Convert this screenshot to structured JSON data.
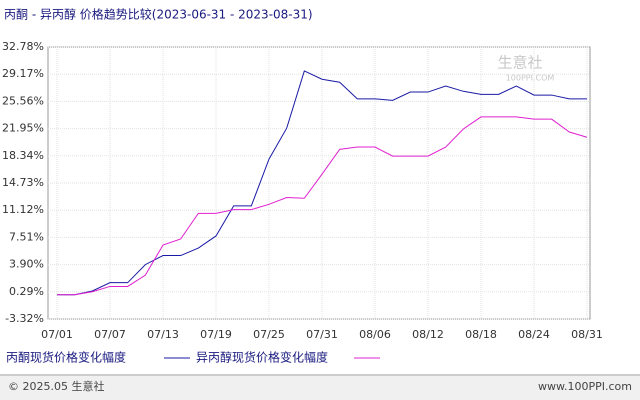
{
  "chart_data": {
    "type": "line",
    "title": "丙酮 - 异丙醇 价格趋势比较(2023-06-31 - 2023-08-31)",
    "categories": [
      "07/01",
      null,
      null,
      "07/07",
      null,
      null,
      "07/13",
      null,
      null,
      "07/19",
      null,
      null,
      "07/25",
      null,
      null,
      "07/31",
      null,
      null,
      "08/06",
      null,
      null,
      "08/12",
      null,
      null,
      "08/18",
      null,
      null,
      "08/24",
      null,
      null,
      "08/31"
    ],
    "series": [
      {
        "name": "丙酮现货价格变化幅度",
        "color": "#1a1aa6",
        "values": [
          -0.1,
          -0.1,
          0.4,
          1.5,
          1.5,
          3.9,
          5.1,
          5.1,
          6.1,
          7.7,
          11.7,
          11.7,
          17.9,
          22,
          29.6,
          28.5,
          28.1,
          25.9,
          25.9,
          25.7,
          26.8,
          26.8,
          27.6,
          26.9,
          26.5,
          26.5,
          27.6,
          26.4,
          26.4,
          25.9,
          25.9
        ]
      },
      {
        "name": "异丙醇现货价格变化幅度",
        "color": "#e020d0",
        "values": [
          -0.1,
          -0.1,
          0.3,
          1.0,
          1.0,
          2.5,
          6.5,
          7.3,
          10.7,
          10.7,
          11.2,
          11.2,
          11.9,
          12.8,
          12.7,
          15.9,
          19.2,
          19.5,
          19.5,
          18.3,
          18.3,
          18.3,
          19.5,
          21.9,
          23.5,
          23.5,
          23.5,
          23.2,
          23.2,
          21.5,
          20.8
        ]
      }
    ],
    "ylim": [
      -3.32,
      32.78
    ],
    "yticks": [
      {
        "value": -3.32,
        "label": "-3.32%"
      },
      {
        "value": 0.29,
        "label": "0.29%"
      },
      {
        "value": 3.9,
        "label": "3.90%"
      },
      {
        "value": 7.51,
        "label": "7.51%"
      },
      {
        "value": 11.12,
        "label": "11.12%"
      },
      {
        "value": 14.73,
        "label": "14.73%"
      },
      {
        "value": 18.34,
        "label": "18.34%"
      },
      {
        "value": 21.95,
        "label": "21.95%"
      },
      {
        "value": 25.56,
        "label": "25.56%"
      },
      {
        "value": 29.17,
        "label": "29.17%"
      },
      {
        "value": 32.78,
        "label": "32.78%"
      }
    ],
    "grid": true,
    "watermark": "生意社",
    "watermark_url": "100PPI.COM",
    "footer_left": "© 2025.05 生意社",
    "footer_right": "www.100PPI.com"
  }
}
